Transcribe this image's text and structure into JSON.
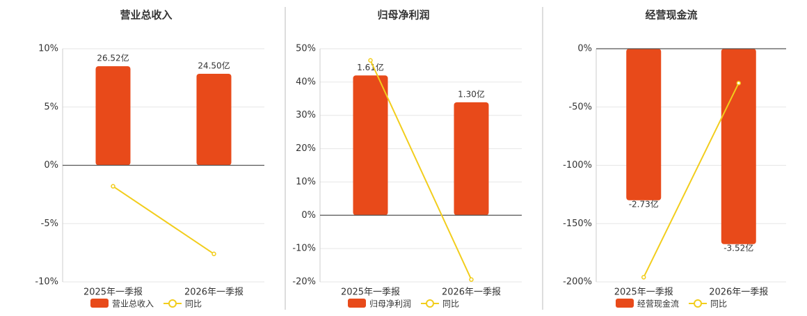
{
  "chart_data": [
    {
      "type": "bar",
      "title": "营业总收入",
      "categories": [
        "2025年一季报",
        "2026年一季报"
      ],
      "series": [
        {
          "name": "营业总收入",
          "type": "bar",
          "axis": "y2",
          "color": "#e84a1a",
          "values": [
            26.52,
            24.5
          ],
          "value_labels": [
            "26.52亿",
            "24.50亿"
          ]
        },
        {
          "name": "同比",
          "type": "line",
          "color": "#f2cd1c",
          "values": [
            -1.8,
            -7.6
          ]
        }
      ],
      "ylim": [
        -10,
        10
      ],
      "yticks": [
        {
          "value": -10,
          "label": "-10%"
        },
        {
          "value": -5,
          "label": "-5%"
        },
        {
          "value": 0,
          "label": "0%"
        },
        {
          "value": 5,
          "label": "5%"
        },
        {
          "value": 10,
          "label": "10%"
        }
      ],
      "y2lim": [
        -31.2,
        31.2
      ],
      "grid": true
    },
    {
      "type": "bar",
      "title": "归母净利润",
      "categories": [
        "2025年一季报",
        "2026年一季报"
      ],
      "series": [
        {
          "name": "归母净利润",
          "type": "bar",
          "axis": "y2",
          "color": "#e84a1a",
          "values": [
            1.61,
            1.3
          ],
          "value_labels": [
            "1.61亿",
            "1.30亿"
          ]
        },
        {
          "name": "同比",
          "type": "line",
          "color": "#f2cd1c",
          "values": [
            46.5,
            -19.3
          ]
        }
      ],
      "ylim": [
        -20,
        50
      ],
      "yticks": [
        {
          "value": -20,
          "label": "-20%"
        },
        {
          "value": -10,
          "label": "-10%"
        },
        {
          "value": 0,
          "label": "0%"
        },
        {
          "value": 10,
          "label": "10%"
        },
        {
          "value": 20,
          "label": "20%"
        },
        {
          "value": 30,
          "label": "30%"
        },
        {
          "value": 40,
          "label": "40%"
        },
        {
          "value": 50,
          "label": "50%"
        }
      ],
      "y2lim": [
        -0.767,
        1.917
      ],
      "grid": true
    },
    {
      "type": "bar",
      "title": "经营现金流",
      "categories": [
        "2025年一季报",
        "2026年一季报"
      ],
      "series": [
        {
          "name": "经营现金流",
          "type": "bar",
          "axis": "y2",
          "color": "#e84a1a",
          "values": [
            -2.73,
            -3.52
          ],
          "value_labels": [
            "-2.73亿",
            "-3.52亿"
          ]
        },
        {
          "name": "同比",
          "type": "line",
          "color": "#f2cd1c",
          "values": [
            -196,
            -29.5
          ]
        }
      ],
      "ylim": [
        -200,
        0
      ],
      "yticks": [
        {
          "value": -200,
          "label": "-200%"
        },
        {
          "value": -150,
          "label": "-150%"
        },
        {
          "value": -100,
          "label": "-100%"
        },
        {
          "value": -50,
          "label": "-50%"
        },
        {
          "value": 0,
          "label": "0%"
        }
      ],
      "y2lim": [
        -4.2,
        0
      ],
      "grid": true
    }
  ]
}
